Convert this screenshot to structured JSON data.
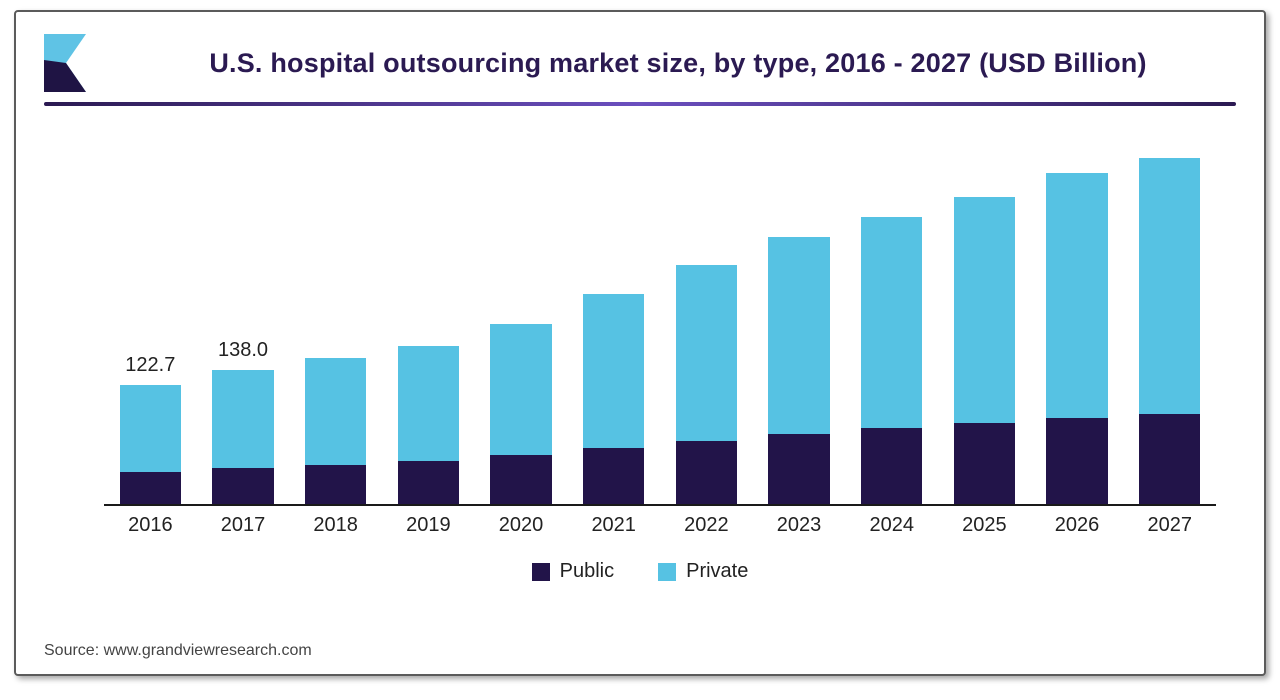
{
  "title": "U.S. hospital outsourcing market size, by type, 2016 - 2027 (USD Billion)",
  "title_fontsize": 27,
  "title_color": "#2b1a52",
  "rule_gradient": [
    "#2b1a52",
    "#6b4fbf",
    "#2b1a52"
  ],
  "logo_colors": {
    "light": "#5fc3e5",
    "dark": "#1f1444"
  },
  "source_label": "Source: www.grandviewresearch.com",
  "chart": {
    "type": "stacked-bar",
    "categories": [
      "2016",
      "2017",
      "2018",
      "2019",
      "2020",
      "2021",
      "2022",
      "2023",
      "2024",
      "2025",
      "2026",
      "2027"
    ],
    "segments": [
      "public",
      "private"
    ],
    "series": {
      "public": [
        33,
        37,
        40,
        44,
        50,
        58,
        65,
        72,
        78,
        83,
        88,
        92
      ],
      "private": [
        89.7,
        101.0,
        110,
        118,
        135,
        158,
        180,
        202,
        217,
        232,
        252,
        263
      ]
    },
    "value_callouts": {
      "0": "122.7",
      "1": "138.0"
    },
    "ylim_max": 380,
    "colors": {
      "public": "#221449",
      "private": "#56c2e3"
    },
    "bar_width_ratio": 0.66,
    "axis_color": "#1a1a1a",
    "xlabel_fontsize": 20,
    "value_fontsize": 20,
    "background": "#ffffff"
  },
  "legend": {
    "items": [
      {
        "key": "public",
        "label": "Public"
      },
      {
        "key": "private",
        "label": "Private"
      }
    ],
    "swatch_size": 18,
    "fontsize": 20
  }
}
